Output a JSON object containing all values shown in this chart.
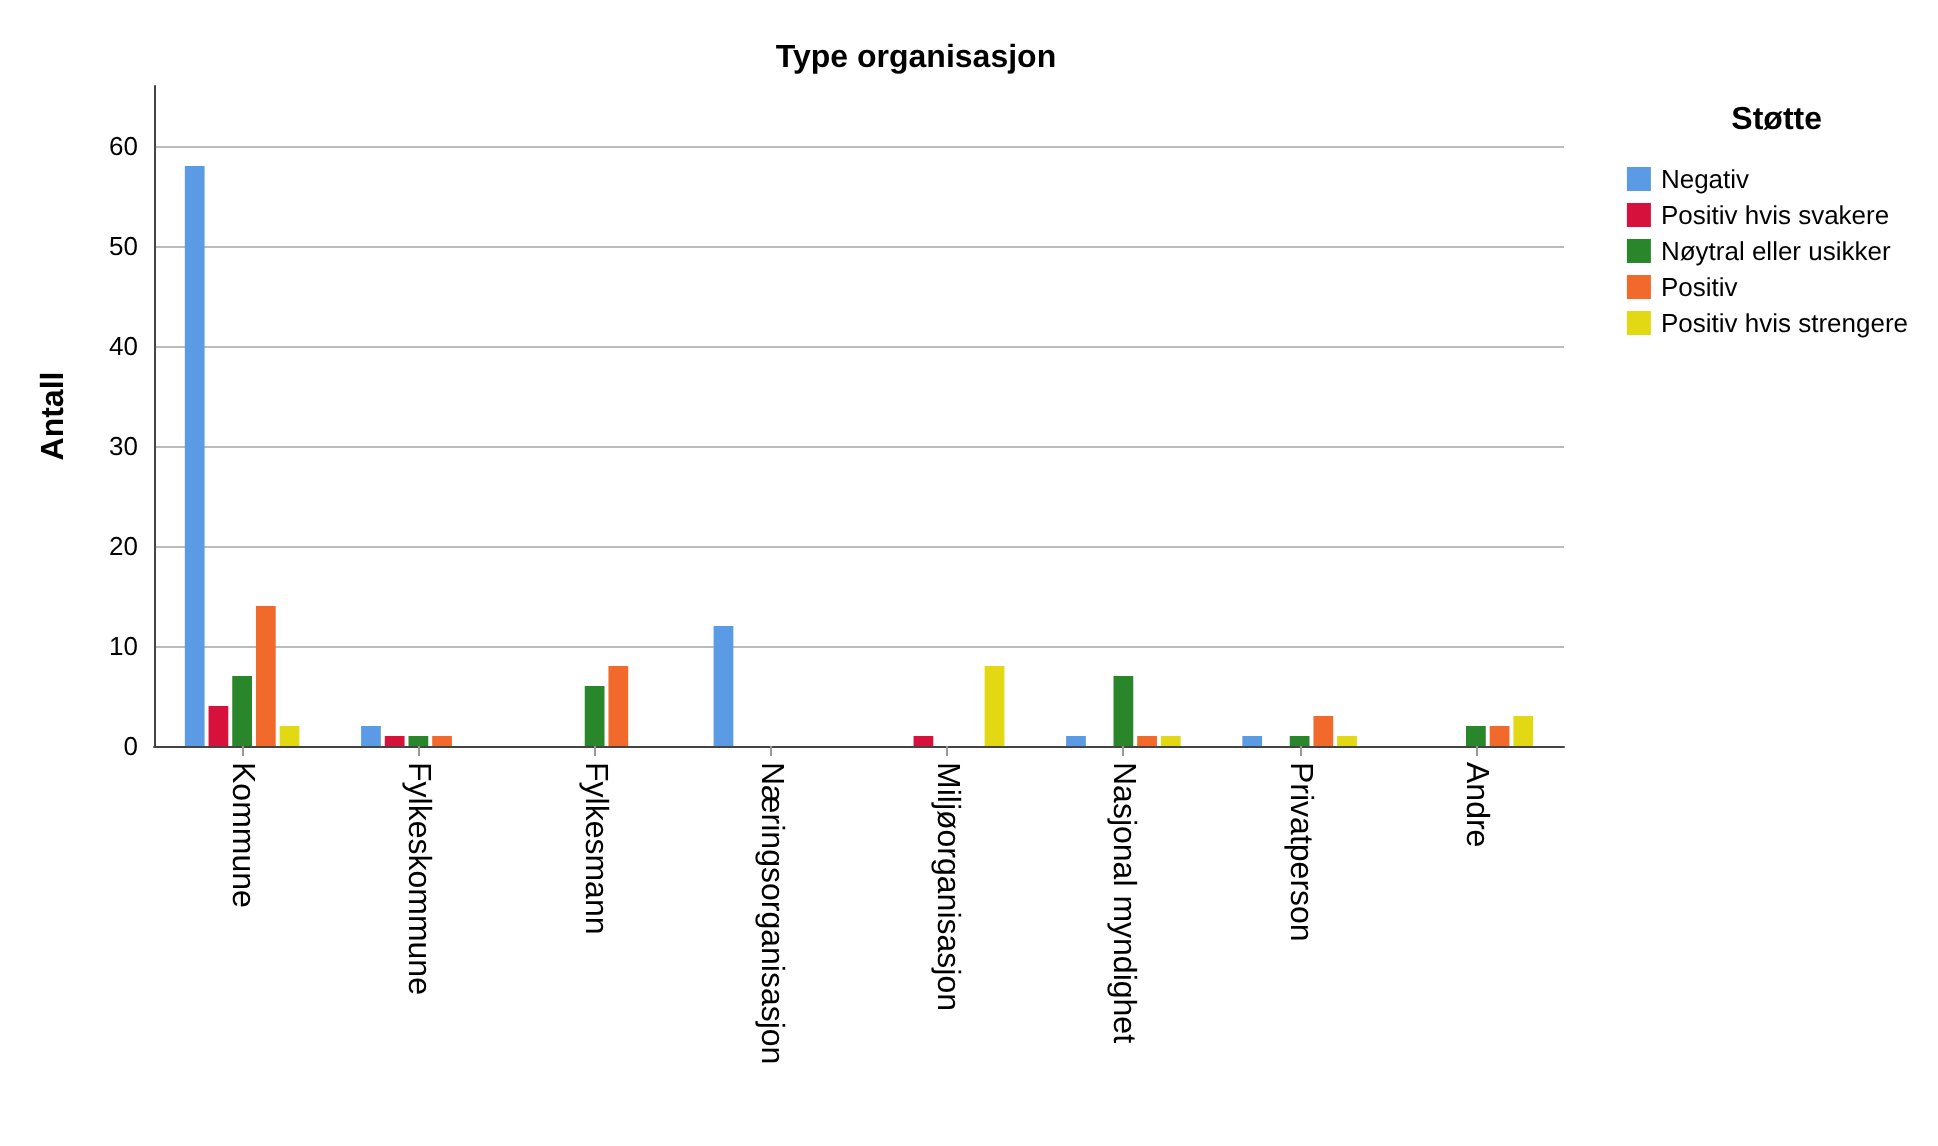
{
  "chart_data": {
    "type": "bar",
    "title": "Type organisasjon",
    "ylabel": "Antall",
    "legend_title": "Støtte",
    "legend": "right",
    "categories": [
      "Kommune",
      "Fylkeskommune",
      "Fylkesmann",
      "Næringsorganisasjon",
      "Miljøorganisasjon",
      "Nasjonal myndighet",
      "Privatperson",
      "Andre"
    ],
    "series": [
      {
        "name": "Negativ",
        "color": "#5b9be6",
        "values": [
          58,
          2,
          0,
          12,
          0,
          1,
          1,
          0
        ]
      },
      {
        "name": "Positiv hvis svakere",
        "color": "#d6113b",
        "values": [
          4,
          1,
          0,
          0,
          1,
          0,
          0,
          0
        ]
      },
      {
        "name": "Nøytral eller usikker",
        "color": "#2a862a",
        "values": [
          7,
          1,
          6,
          0,
          0,
          7,
          1,
          2
        ]
      },
      {
        "name": "Positiv",
        "color": "#f26a2b",
        "values": [
          14,
          1,
          8,
          0,
          0,
          1,
          3,
          2
        ]
      },
      {
        "name": "Positiv hvis strengere",
        "color": "#e3d814",
        "values": [
          2,
          0,
          0,
          0,
          8,
          1,
          1,
          3
        ]
      }
    ],
    "ylim": [
      0,
      66
    ],
    "yticks": [
      0,
      10,
      20,
      30,
      40,
      50,
      60
    ],
    "grid": "y"
  }
}
